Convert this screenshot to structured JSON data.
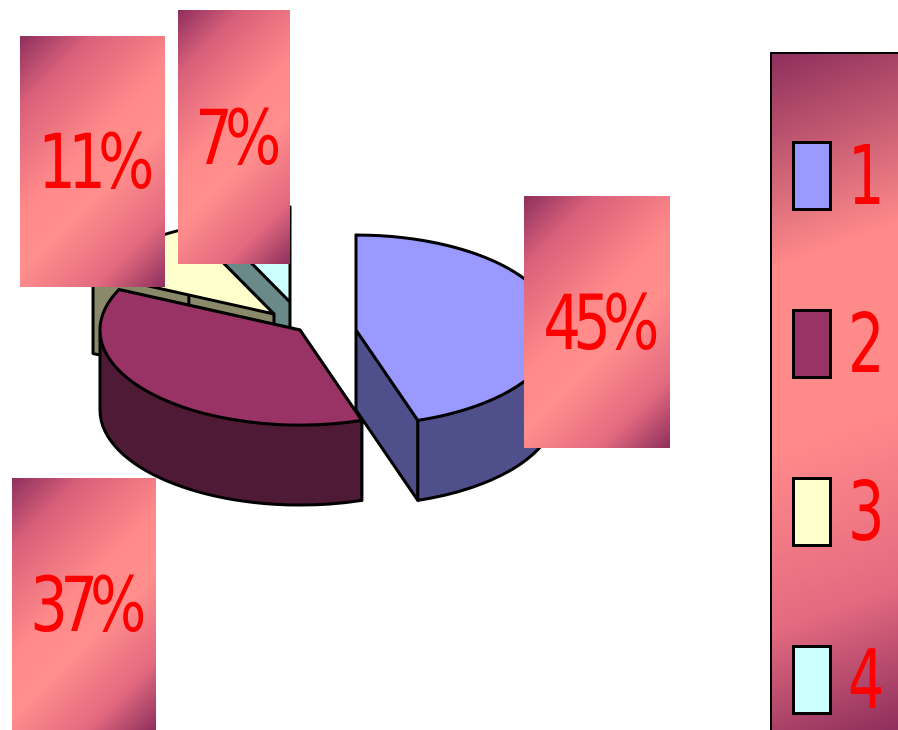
{
  "chart_data": {
    "type": "pie",
    "style": "3d-exploded",
    "legend_position": "right",
    "slices": [
      {
        "legend": "1",
        "value": 45,
        "label": "45%",
        "color": "#9999ff",
        "side_color": "#4f4f8c"
      },
      {
        "legend": "2",
        "value": 37,
        "label": "37%",
        "color": "#993366",
        "side_color": "#4f1a35"
      },
      {
        "legend": "3",
        "value": 11,
        "label": "11%",
        "color": "#ffffcc",
        "side_color": "#8a8a6a"
      },
      {
        "legend": "4",
        "value": 7,
        "label": "7%",
        "color": "#ccffff",
        "side_color": "#6a8a8a"
      }
    ]
  }
}
